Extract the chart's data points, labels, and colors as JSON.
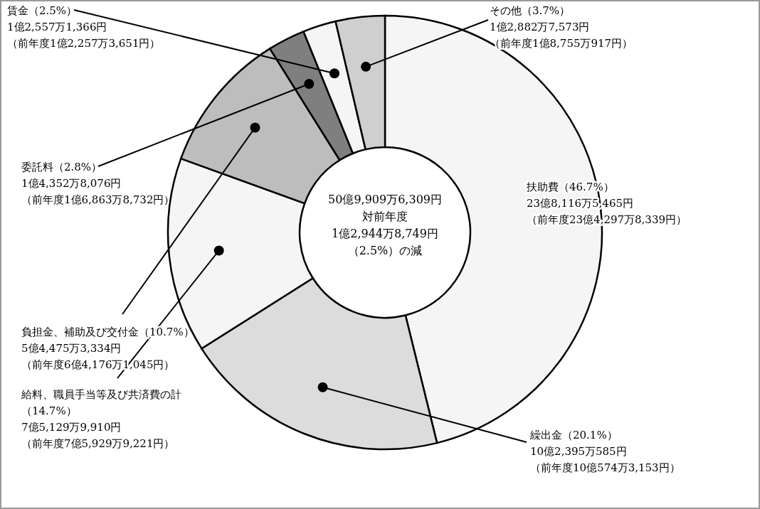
{
  "chart_data": {
    "type": "donut",
    "categories": [
      "扶助費",
      "繰出金",
      "給料、職員手当等及び共済費の計",
      "負担金、補助及び交付金",
      "委託料",
      "賃金",
      "その他"
    ],
    "values": [
      46.7,
      20.1,
      14.7,
      10.7,
      2.8,
      2.5,
      3.7
    ],
    "value_labels": [
      "（46.7%）",
      "（20.1%）",
      "（14.7%）",
      "（10.7%）",
      "（2.8%）",
      "（2.5%）",
      "（3.7%）"
    ],
    "colors": [
      "#f5f5f5",
      "#dcdcdc",
      "#f5f5f5",
      "#bdbdbd",
      "#7f7f7f",
      "#f5f5f5",
      "#cfcfcf"
    ],
    "legend": false,
    "annotations": [
      "23億8,116万5,465円",
      "（前年度23億4,297万8,339円）",
      "10億2,395万585円",
      "（前年度10億574万3,153円）",
      "7億5,129万9,910円",
      "（前年度7億5,929万9,221円）",
      "5億4,475万3,334円",
      "（前年度6億4,176万1,045円）",
      "1億4,352万8,076円",
      "（前年度1億6,863万8,732円）",
      "1億2,557万1,366円",
      "（前年度1億2,257万3,651円）",
      "1億2,882万7,573円",
      "（前年度1億8,755万917円）",
      "50億9,909万6,309円",
      "対前年度",
      "1億2,944万8,749円",
      "（2.5%）の減"
    ]
  }
}
